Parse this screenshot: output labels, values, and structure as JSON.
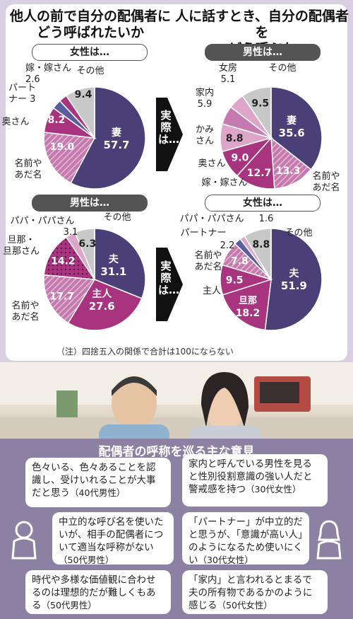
{
  "titles": {
    "left": "他人の前で自分の配偶者に\nどう呼ばれたいか",
    "right": "人に話すとき、自分の配偶者を\nどう呼ぶか"
  },
  "arrow_text": "実際は…",
  "note": "（注）四捨五入の関係で合計は100にならない",
  "opinion_title": "配偶者の呼称を巡る主な意見",
  "colors": {
    "navy": "#4a4077",
    "magenta": "#a8347f",
    "pink": "#c47aae",
    "light_pink": "#dda6c8",
    "grey": "#c8c8c8",
    "opinion_bg": "#8c80a3"
  },
  "chart_data": [
    {
      "type": "pie",
      "group_label": "女性は…",
      "slices": [
        {
          "label": "妻",
          "value": 57.7
        },
        {
          "label": "名前やあだ名",
          "value": 19.0
        },
        {
          "label": "奥さん",
          "value": 8.2
        },
        {
          "label": "パートナー",
          "value": 3
        },
        {
          "label": "嫁・嫁さん",
          "value": 2.6
        },
        {
          "label": "その他",
          "value": 9.4
        }
      ]
    },
    {
      "type": "pie",
      "group_label": "男性は…",
      "slices": [
        {
          "label": "妻",
          "value": 35.6
        },
        {
          "label": "名前やあだ名",
          "value": 13.3
        },
        {
          "label": "嫁・嫁さん",
          "value": 12.7
        },
        {
          "label": "奥さん",
          "value": 9.0
        },
        {
          "label": "かみさん",
          "value": 8.8
        },
        {
          "label": "家内",
          "value": 5.9
        },
        {
          "label": "女房",
          "value": 5.1
        },
        {
          "label": "その他",
          "value": 9.5
        }
      ]
    },
    {
      "type": "pie",
      "group_label": "男性は…",
      "slices": [
        {
          "label": "夫",
          "value": 31.1
        },
        {
          "label": "主人",
          "value": 27.6
        },
        {
          "label": "名前やあだ名",
          "value": 17.7
        },
        {
          "label": "旦那・旦那さん",
          "value": 14.2
        },
        {
          "label": "パパ・パパさん",
          "value": 3.1
        },
        {
          "label": "その他",
          "value": 6.3
        }
      ]
    },
    {
      "type": "pie",
      "group_label": "女性は…",
      "slices": [
        {
          "label": "夫",
          "value": 51.9
        },
        {
          "label": "旦那",
          "value": 18.2
        },
        {
          "label": "主人",
          "value": 9.5
        },
        {
          "label": "名前やあだ名",
          "value": 7.8
        },
        {
          "label": "パートナー",
          "value": 2.2
        },
        {
          "label": "パパ・パパさん",
          "value": 1.6
        },
        {
          "label": "その他",
          "value": 8.8
        }
      ]
    }
  ],
  "opinions": [
    {
      "text": "色々いる、色々あることを認識し、受けいれることが大事だと思う",
      "who": "（40代男性）"
    },
    {
      "text": "家内と呼んでいる男性を見ると性別役割意識の強い人だと警戒感を持つ",
      "who": "（30代女性）"
    },
    {
      "text": "中立的な呼び名を使いたいが、相手の配偶者について適当な呼称がない",
      "who": "（50代男性）"
    },
    {
      "text": "「パートナー」が中立的だと思うが、「意識が高い人」のようになるため使いにくい",
      "who": "（30代女性）"
    },
    {
      "text": "時代や多様な価値観に合わせるのは理想的だが難しくもある",
      "who": "（50代男性）"
    },
    {
      "text": "「家内」と言われるとまるで夫の所有物であるかのように感じる",
      "who": "（50代女性）"
    }
  ]
}
